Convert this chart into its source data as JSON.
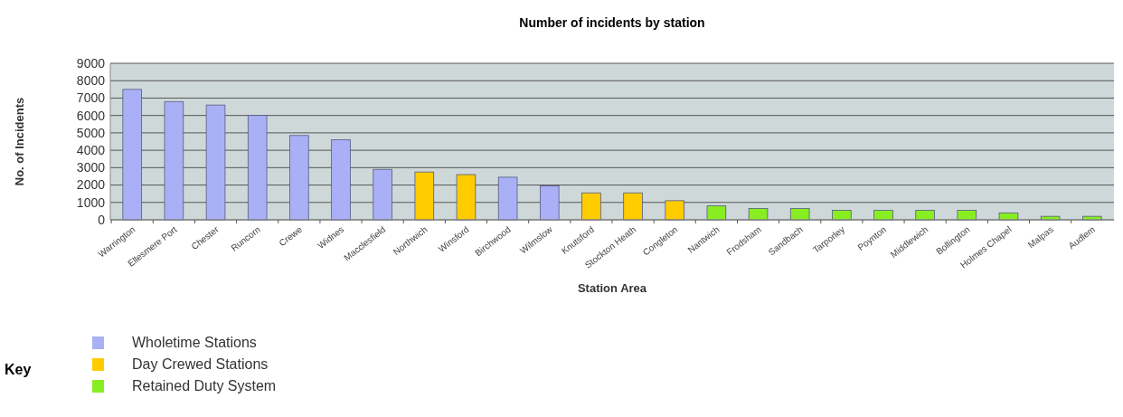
{
  "chart_data": {
    "type": "bar",
    "title": "Number of incidents by station",
    "xlabel": "Station Area",
    "ylabel": "No. of Incidents",
    "legend_title": "Key",
    "categories": [
      "Warrington",
      "Ellesmere Port",
      "Chester",
      "Runcorn",
      "Crewe",
      "Widnes",
      "Macclesfield",
      "Northwich",
      "Winsford",
      "Birchwood",
      "Wilmslow",
      "Knutsford",
      "Stockton Heath",
      "Congleton",
      "Nantwich",
      "Frodsham",
      "Sandbach",
      "Tarporley",
      "Poynton",
      "Middlewich",
      "Bollington",
      "Holmes Chapel",
      "Malpas",
      "Audlem"
    ],
    "series": [
      {
        "name": "Wholetime Stations",
        "color": "#aab0f5",
        "values": [
          7500,
          6800,
          6600,
          6000,
          4850,
          4600,
          2900,
          null,
          null,
          2450,
          1950,
          null,
          null,
          null,
          null,
          null,
          null,
          null,
          null,
          null,
          null,
          null,
          null,
          null
        ]
      },
      {
        "name": "Day Crewed Stations",
        "color": "#ffcc00",
        "values": [
          null,
          null,
          null,
          null,
          null,
          null,
          null,
          2750,
          2600,
          null,
          null,
          1550,
          1550,
          1100,
          null,
          null,
          null,
          null,
          null,
          null,
          null,
          null,
          null,
          null
        ]
      },
      {
        "name": "Retained Duty System",
        "color": "#88ee22",
        "values": [
          null,
          null,
          null,
          null,
          null,
          null,
          null,
          null,
          null,
          null,
          null,
          null,
          null,
          null,
          800,
          650,
          650,
          550,
          550,
          550,
          550,
          400,
          200,
          200
        ]
      }
    ],
    "ylim": [
      0,
      9000
    ],
    "yticks": [
      0,
      1000,
      2000,
      3000,
      4000,
      5000,
      6000,
      7000,
      8000,
      9000
    ],
    "grid": "y",
    "legend": "bottom left"
  }
}
